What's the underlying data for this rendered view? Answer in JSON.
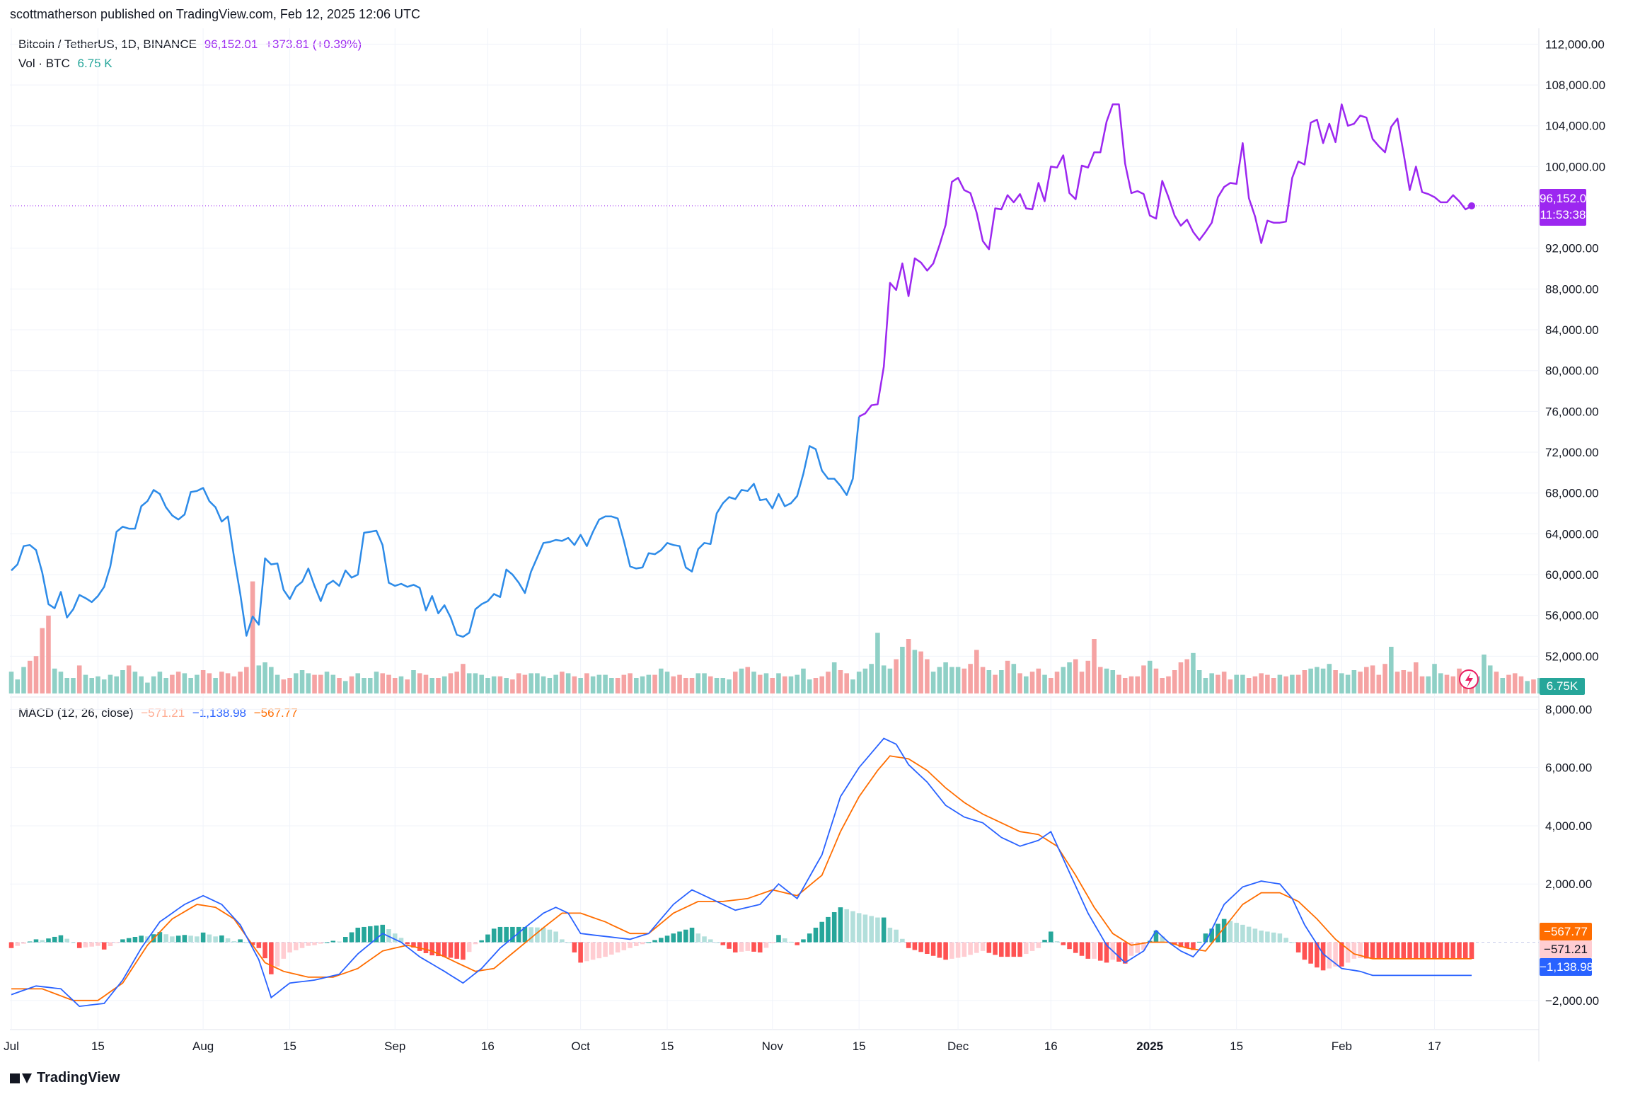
{
  "header": {
    "published": "scottmatherson published on TradingView.com, Feb 12, 2025 12:06 UTC",
    "symbol": "Bitcoin / TetherUS, 1D, BINANCE",
    "price": "96,152.01",
    "change": "+373.81 (+0.39%)",
    "vol_label": "Vol · BTC",
    "vol_value": "6.75 K",
    "macd_label": "MACD (12, 26, close)",
    "macd_hist": "−571.21",
    "macd_line": "−1,138.98",
    "macd_signal": "−567.77"
  },
  "footer": {
    "brand": "TradingView"
  },
  "tags": {
    "price": "96,152.01",
    "countdown": "11:53:38",
    "volume": "6.75K",
    "signal": "−567.77",
    "hist": "−571.21",
    "macd": "−1,138.98"
  },
  "colors": {
    "price_up_line": "#9c27f0",
    "price_line": "#2d8be8",
    "vol_up": "#8fd0c6",
    "vol_down": "#f5a3a3",
    "macd_line": "#2962ff",
    "signal_line": "#ff6d00",
    "hist_pos_strong": "#26a69a",
    "hist_pos_weak": "#b2dfdb",
    "hist_neg_strong": "#ff5252",
    "hist_neg_weak": "#ffcdd2"
  },
  "chart_data": [
    {
      "type": "line",
      "name": "price",
      "y_ticks": [
        "112,000.00",
        "108,000.00",
        "104,000.00",
        "100,000.00",
        "92,000.00",
        "88,000.00",
        "84,000.00",
        "80,000.00",
        "76,000.00",
        "72,000.00",
        "68,000.00",
        "64,000.00",
        "60,000.00",
        "56,000.00",
        "52,000.00"
      ],
      "y_tick_values": [
        112000,
        108000,
        104000,
        100000,
        92000,
        88000,
        84000,
        80000,
        76000,
        72000,
        68000,
        64000,
        60000,
        56000,
        52000
      ],
      "ylim": [
        48000,
        113000
      ],
      "x_labels": [
        "Jul",
        "15",
        "Aug",
        "15",
        "Sep",
        "16",
        "Oct",
        "15",
        "Nov",
        "15",
        "Dec",
        "16",
        "2025",
        "15",
        "Feb",
        "17"
      ],
      "x_label_days": [
        0,
        14,
        31,
        45,
        62,
        77,
        92,
        106,
        123,
        137,
        153,
        168,
        184,
        198,
        215,
        230
      ],
      "last_value": 96152.01,
      "values": [
        60400,
        61000,
        62800,
        62900,
        62400,
        60200,
        57100,
        56700,
        58300,
        55800,
        56600,
        58000,
        57700,
        57300,
        57900,
        58800,
        60800,
        64200,
        64700,
        64500,
        64500,
        66700,
        67200,
        68300,
        67900,
        66600,
        65800,
        65400,
        65900,
        68100,
        68200,
        68500,
        67200,
        66600,
        65200,
        65700,
        61700,
        58100,
        54000,
        55900,
        55100,
        61600,
        61000,
        61100,
        58500,
        57600,
        58800,
        59300,
        60600,
        58900,
        57400,
        59000,
        59400,
        58900,
        60400,
        59700,
        60000,
        64100,
        64200,
        64300,
        62900,
        59200,
        58900,
        59100,
        58800,
        59000,
        58700,
        56500,
        57900,
        56200,
        57000,
        55800,
        54100,
        53900,
        54300,
        56600,
        57100,
        57400,
        58100,
        57800,
        60500,
        60000,
        59200,
        58200,
        60300,
        61700,
        63100,
        63200,
        63400,
        63300,
        63600,
        62900,
        63900,
        62800,
        64200,
        65400,
        65700,
        65700,
        65500,
        63300,
        60800,
        60600,
        60700,
        62100,
        62000,
        62400,
        63100,
        62900,
        62800,
        60700,
        60300,
        62500,
        63100,
        63000,
        66000,
        67000,
        67600,
        67400,
        68300,
        68200,
        68900,
        67300,
        67400,
        66500,
        67900,
        66700,
        67000,
        67700,
        69900,
        72600,
        72300,
        70200,
        69400,
        69400,
        68700,
        67800,
        69400,
        75500,
        75800,
        76600,
        76700,
        80400,
        88600,
        87900,
        90500,
        87300,
        91000,
        90600,
        89800,
        90500,
        92300,
        94300,
        98500,
        98900,
        97700,
        97400,
        95500,
        92700,
        91900,
        95900,
        95800,
        97200,
        96500,
        97300,
        95900,
        95800,
        98400,
        96600,
        100000,
        99900,
        101100,
        97400,
        96800,
        100100,
        99900,
        101400,
        101400,
        104400,
        106100,
        106100,
        100300,
        97400,
        97600,
        97300,
        95200,
        94900,
        98600,
        97000,
        95200,
        94200,
        94800,
        93600,
        92800,
        93600,
        94500,
        97000,
        98000,
        98400,
        98300,
        102300,
        96900,
        95100,
        92500,
        94700,
        94500,
        94500,
        94600,
        98900,
        100500,
        100200,
        104300,
        104600,
        102300,
        104200,
        102400,
        106100,
        104000,
        104200,
        105000,
        104800,
        102700,
        102000,
        101400,
        103900,
        104700,
        101300,
        97700,
        100000,
        97500,
        97300,
        97000,
        96500,
        96500,
        97200,
        96600,
        95800,
        96152
      ]
    },
    {
      "type": "bar",
      "name": "volume",
      "label": "Vol · BTC",
      "note": "relative volume 0-100",
      "values": [
        14,
        9,
        17,
        21,
        24,
        42,
        50,
        16,
        14,
        10,
        10,
        18,
        12,
        10,
        11,
        9,
        12,
        11,
        15,
        18,
        14,
        11,
        7,
        11,
        14,
        10,
        12,
        14,
        13,
        10,
        12,
        15,
        13,
        10,
        14,
        13,
        11,
        14,
        17,
        72,
        18,
        20,
        17,
        12,
        9,
        10,
        13,
        15,
        13,
        12,
        12,
        14,
        12,
        10,
        8,
        11,
        13,
        10,
        10,
        14,
        13,
        12,
        10,
        11,
        9,
        15,
        13,
        12,
        10,
        10,
        11,
        13,
        14,
        19,
        13,
        13,
        12,
        10,
        11,
        11,
        10,
        9,
        13,
        12,
        13,
        13,
        11,
        10,
        12,
        14,
        13,
        11,
        10,
        13,
        11,
        12,
        12,
        10,
        10,
        12,
        13,
        10,
        11,
        12,
        12,
        16,
        14,
        11,
        12,
        10,
        10,
        13,
        13,
        11,
        10,
        10,
        9,
        14,
        16,
        17,
        14,
        12,
        13,
        10,
        13,
        11,
        11,
        12,
        16,
        9,
        10,
        11,
        14,
        20,
        15,
        13,
        9,
        14,
        16,
        19,
        39,
        18,
        16,
        22,
        30,
        35,
        28,
        27,
        22,
        14,
        17,
        20,
        17,
        17,
        16,
        19,
        28,
        17,
        15,
        12,
        15,
        21,
        19,
        13,
        11,
        14,
        16,
        12,
        10,
        14,
        17,
        20,
        22,
        14,
        21,
        35,
        17,
        16,
        15,
        12,
        10,
        11,
        11,
        18,
        21,
        16,
        10,
        11,
        15,
        20,
        22,
        26,
        15,
        10,
        13,
        12,
        14,
        9,
        12,
        12,
        10,
        11,
        13,
        12,
        10,
        12,
        11,
        12,
        12,
        15,
        16,
        17,
        16,
        19,
        15,
        13,
        12,
        15,
        14,
        17,
        18,
        12,
        19,
        30,
        14,
        15,
        14,
        20,
        11,
        11,
        19,
        13,
        12,
        11,
        16,
        12,
        10,
        11,
        25,
        18,
        14,
        10,
        12,
        13,
        11,
        8,
        9,
        10,
        6
      ],
      "down": [
        0,
        0,
        0,
        1,
        1,
        1,
        1,
        0,
        0,
        0,
        0,
        1,
        0,
        0,
        0,
        0,
        0,
        0,
        0,
        1,
        0,
        0,
        0,
        0,
        0,
        0,
        1,
        1,
        0,
        0,
        0,
        1,
        1,
        0,
        1,
        1,
        1,
        1,
        1,
        1,
        0,
        0,
        0,
        0,
        1,
        1,
        0,
        0,
        0,
        1,
        1,
        0,
        0,
        1,
        0,
        1,
        0,
        0,
        0,
        0,
        1,
        1,
        1,
        0,
        1,
        0,
        1,
        1,
        0,
        1,
        0,
        1,
        1,
        1,
        0,
        0,
        0,
        0,
        0,
        1,
        0,
        1,
        1,
        1,
        0,
        0,
        0,
        0,
        0,
        1,
        0,
        1,
        0,
        1,
        0,
        0,
        0,
        0,
        1,
        1,
        1,
        0,
        0,
        0,
        1,
        0,
        0,
        1,
        1,
        1,
        1,
        0,
        0,
        1,
        0,
        0,
        0,
        1,
        0,
        1,
        0,
        1,
        0,
        1,
        0,
        1,
        0,
        0,
        0,
        0,
        1,
        1,
        1,
        0,
        1,
        1,
        0,
        0,
        0,
        0,
        0,
        0,
        0,
        1,
        0,
        1,
        0,
        1,
        1,
        0,
        0,
        0,
        0,
        0,
        1,
        1,
        1,
        1,
        0,
        1,
        0,
        1,
        0,
        1,
        0,
        1,
        1,
        0,
        1,
        1,
        0,
        0,
        1,
        1,
        1,
        1,
        1,
        0,
        0,
        1,
        1,
        1,
        1,
        1,
        0,
        1,
        1,
        1,
        1,
        1,
        1,
        0,
        0,
        0,
        0,
        1,
        1,
        1,
        0,
        0,
        1,
        1,
        1,
        1,
        1,
        0,
        1,
        0,
        1,
        1,
        0,
        0,
        0,
        0,
        1,
        0,
        0,
        0,
        1,
        1,
        1,
        1,
        1,
        0,
        1,
        1,
        1,
        1,
        1,
        0,
        0,
        0,
        1,
        1,
        1,
        1,
        1,
        0,
        0,
        0,
        1,
        0,
        1,
        1,
        1,
        0,
        1,
        0,
        0
      ]
    },
    {
      "type": "line",
      "name": "macd",
      "label": "MACD (12, 26, close)",
      "y_ticks": [
        "8,000.00",
        "6,000.00",
        "4,000.00",
        "2,000.00",
        "−2,000.00"
      ],
      "y_tick_values": [
        8000,
        6000,
        4000,
        2000,
        -2000
      ],
      "ylim": [
        -3000,
        8300
      ],
      "macd_keyframes": [
        [
          0,
          -1800
        ],
        [
          4,
          -1500
        ],
        [
          8,
          -1600
        ],
        [
          11,
          -2200
        ],
        [
          15,
          -2100
        ],
        [
          18,
          -1300
        ],
        [
          21,
          -200
        ],
        [
          24,
          700
        ],
        [
          28,
          1300
        ],
        [
          31,
          1600
        ],
        [
          34,
          1300
        ],
        [
          37,
          600
        ],
        [
          40,
          -600
        ],
        [
          42,
          -1900
        ],
        [
          45,
          -1400
        ],
        [
          49,
          -1300
        ],
        [
          53,
          -1100
        ],
        [
          56,
          -400
        ],
        [
          60,
          300
        ],
        [
          63,
          0
        ],
        [
          66,
          -500
        ],
        [
          70,
          -1000
        ],
        [
          73,
          -1400
        ],
        [
          76,
          -900
        ],
        [
          79,
          -200
        ],
        [
          83,
          500
        ],
        [
          86,
          1000
        ],
        [
          88,
          1200
        ],
        [
          90,
          1000
        ],
        [
          92,
          300
        ],
        [
          96,
          200
        ],
        [
          100,
          100
        ],
        [
          103,
          300
        ],
        [
          107,
          1300
        ],
        [
          110,
          1800
        ],
        [
          114,
          1400
        ],
        [
          117,
          1100
        ],
        [
          121,
          1300
        ],
        [
          124,
          2000
        ],
        [
          127,
          1500
        ],
        [
          131,
          3000
        ],
        [
          134,
          5000
        ],
        [
          137,
          6000
        ],
        [
          139,
          6500
        ],
        [
          141,
          7000
        ],
        [
          143,
          6800
        ],
        [
          145,
          6100
        ],
        [
          148,
          5500
        ],
        [
          151,
          4700
        ],
        [
          154,
          4300
        ],
        [
          157,
          4100
        ],
        [
          160,
          3600
        ],
        [
          163,
          3300
        ],
        [
          166,
          3500
        ],
        [
          168,
          3800
        ],
        [
          171,
          2400
        ],
        [
          174,
          1000
        ],
        [
          177,
          -100
        ],
        [
          180,
          -700
        ],
        [
          183,
          -300
        ],
        [
          185,
          400
        ],
        [
          187,
          0
        ],
        [
          189,
          -300
        ],
        [
          191,
          -500
        ],
        [
          193,
          0
        ],
        [
          196,
          1300
        ],
        [
          199,
          1900
        ],
        [
          202,
          2100
        ],
        [
          205,
          2000
        ],
        [
          207,
          1500
        ],
        [
          209,
          600
        ],
        [
          212,
          -400
        ],
        [
          215,
          -900
        ],
        [
          218,
          -1000
        ],
        [
          220,
          -1139
        ]
      ],
      "signal_keyframes": [
        [
          0,
          -1600
        ],
        [
          5,
          -1600
        ],
        [
          10,
          -2000
        ],
        [
          14,
          -2000
        ],
        [
          18,
          -1400
        ],
        [
          22,
          -100
        ],
        [
          26,
          800
        ],
        [
          30,
          1300
        ],
        [
          33,
          1200
        ],
        [
          36,
          800
        ],
        [
          39,
          -100
        ],
        [
          41,
          -700
        ],
        [
          44,
          -1000
        ],
        [
          48,
          -1200
        ],
        [
          52,
          -1200
        ],
        [
          56,
          -900
        ],
        [
          60,
          -300
        ],
        [
          64,
          -100
        ],
        [
          68,
          -300
        ],
        [
          72,
          -700
        ],
        [
          75,
          -1000
        ],
        [
          78,
          -900
        ],
        [
          82,
          -200
        ],
        [
          86,
          500
        ],
        [
          89,
          1000
        ],
        [
          92,
          1000
        ],
        [
          96,
          700
        ],
        [
          100,
          300
        ],
        [
          103,
          300
        ],
        [
          107,
          1000
        ],
        [
          111,
          1400
        ],
        [
          115,
          1400
        ],
        [
          119,
          1500
        ],
        [
          123,
          1800
        ],
        [
          127,
          1600
        ],
        [
          131,
          2300
        ],
        [
          134,
          3800
        ],
        [
          137,
          5000
        ],
        [
          140,
          5900
        ],
        [
          142,
          6400
        ],
        [
          145,
          6300
        ],
        [
          148,
          5900
        ],
        [
          151,
          5300
        ],
        [
          154,
          4800
        ],
        [
          157,
          4400
        ],
        [
          160,
          4100
        ],
        [
          163,
          3800
        ],
        [
          166,
          3700
        ],
        [
          169,
          3300
        ],
        [
          172,
          2300
        ],
        [
          175,
          1200
        ],
        [
          178,
          300
        ],
        [
          181,
          -100
        ],
        [
          184,
          0
        ],
        [
          187,
          0
        ],
        [
          190,
          -200
        ],
        [
          193,
          -300
        ],
        [
          196,
          500
        ],
        [
          199,
          1300
        ],
        [
          202,
          1700
        ],
        [
          205,
          1700
        ],
        [
          208,
          1400
        ],
        [
          211,
          800
        ],
        [
          214,
          100
        ],
        [
          217,
          -400
        ],
        [
          220,
          -568
        ]
      ]
    }
  ]
}
